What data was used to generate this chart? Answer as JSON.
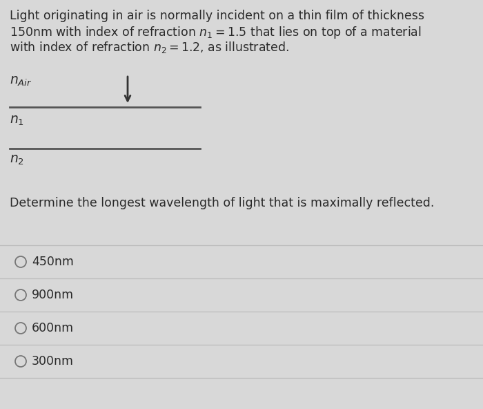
{
  "background_color": "#d8d8d8",
  "title_lines": [
    "Light originating in air is normally incident on a thin film of thickness",
    "150nm with index of refraction $n_1 = 1.5$ that lies on top of a material",
    "with index of refraction $n_2 = 1.2$, as illustrated."
  ],
  "diagram_label_air": "$n_{Air}$",
  "diagram_label_n1": "$n_1$",
  "diagram_label_n2": "$n_2$",
  "question_text": "Determine the longest wavelength of light that is maximally reflected.",
  "options": [
    "450nm",
    "900nm",
    "600nm",
    "300nm"
  ],
  "option_line_color": "#bbbbbb",
  "text_color": "#2a2a2a",
  "font_size_title": 12.5,
  "font_size_labels": 13.5,
  "font_size_question": 12.5,
  "font_size_options": 12.5,
  "arrow_color": "#333333",
  "line_color": "#555555"
}
